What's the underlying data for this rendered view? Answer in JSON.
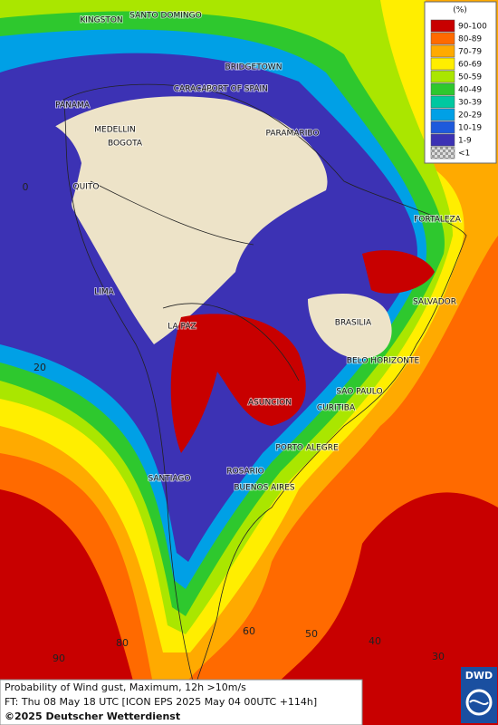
{
  "legend": {
    "title": "(%)",
    "entries": [
      {
        "label": "90-100",
        "color": "#c80000"
      },
      {
        "label": "80-89",
        "color": "#ff6a00"
      },
      {
        "label": "70-79",
        "color": "#ffaa00"
      },
      {
        "label": "60-69",
        "color": "#ffee00"
      },
      {
        "label": "50-59",
        "color": "#aae600"
      },
      {
        "label": "40-49",
        "color": "#2ec82e"
      },
      {
        "label": "30-39",
        "color": "#00c8a0"
      },
      {
        "label": "20-29",
        "color": "#00a0e6"
      },
      {
        "label": "10-19",
        "color": "#1e5adc"
      },
      {
        "label": "1-9",
        "color": "#3c32b4"
      },
      {
        "label": "<1",
        "color": "#b4b4b4"
      }
    ]
  },
  "cities": [
    "KINGSTON",
    "SANTO DOMINGO",
    "BRIDGETOWN",
    "CARACAS",
    "PORT OF SPAIN",
    "PANAMA",
    "MEDELLIN",
    "PARAMARIBO",
    "BOGOTA",
    "QUITO",
    "FORTALEZA",
    "LIMA",
    "SALVADOR",
    "BRASILIA",
    "LA PAZ",
    "BELO HORIZONTE",
    "SAO PAULO",
    "ASUNCION",
    "CURITIBA",
    "PORTO ALEGRE",
    "SANTIAGO",
    "ROSARIO",
    "BUENOS AIRES"
  ],
  "grid_labels": [
    "0",
    "20",
    "60",
    "50",
    "40",
    "80",
    "30",
    "90"
  ],
  "footer": {
    "line1": "Probability of Wind gust, Maximum, 12h >10m/s",
    "line2": "FT: Thu 08 May 18 UTC [ICON EPS 2025 May 04 00UTC +114h]",
    "copyright": "©2025 Deutscher Wetterdienst"
  },
  "logo": "DWD"
}
